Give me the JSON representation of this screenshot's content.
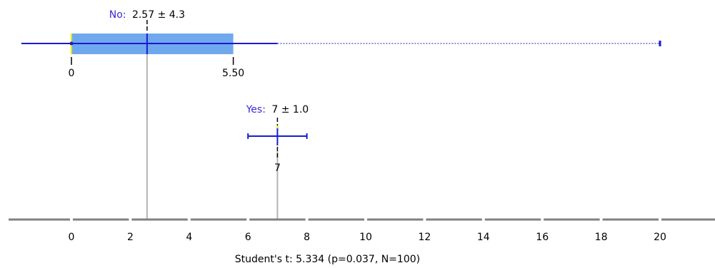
{
  "chart_data": {
    "type": "box",
    "x_ticks": [
      "0",
      "2",
      "4",
      "6",
      "8",
      "10",
      "12",
      "14",
      "16",
      "18",
      "20"
    ],
    "xlim": [
      -2.2,
      21.8
    ],
    "groups": [
      {
        "name": "No",
        "mean": 2.57,
        "sd": 4.3,
        "label_name": "No:",
        "label_stats": "2.57 ± 4.3",
        "q1": 0,
        "q3": 5.5,
        "q1_label": "0",
        "q3_label": "5.50",
        "whisker_low": -1.7,
        "whisker_high": 7,
        "outlier_max": 20,
        "has_box": true
      },
      {
        "name": "Yes",
        "mean": 7,
        "sd": 1.0,
        "label_name": "Yes:",
        "label_stats": "7 ± 1.0",
        "median_label": "7",
        "whisker_low": 6,
        "whisker_high": 8,
        "has_box": false
      }
    ],
    "footer": "Student's t: 5.334 (p=0.037, N=100)"
  },
  "colors": {
    "box_fill": "#70a8ee",
    "whisker": "#1a1ad4",
    "name_text": "#3a2bd6",
    "yellow": "#e6e600",
    "axis": "#808080",
    "mean_line": "#b4b4b4"
  }
}
